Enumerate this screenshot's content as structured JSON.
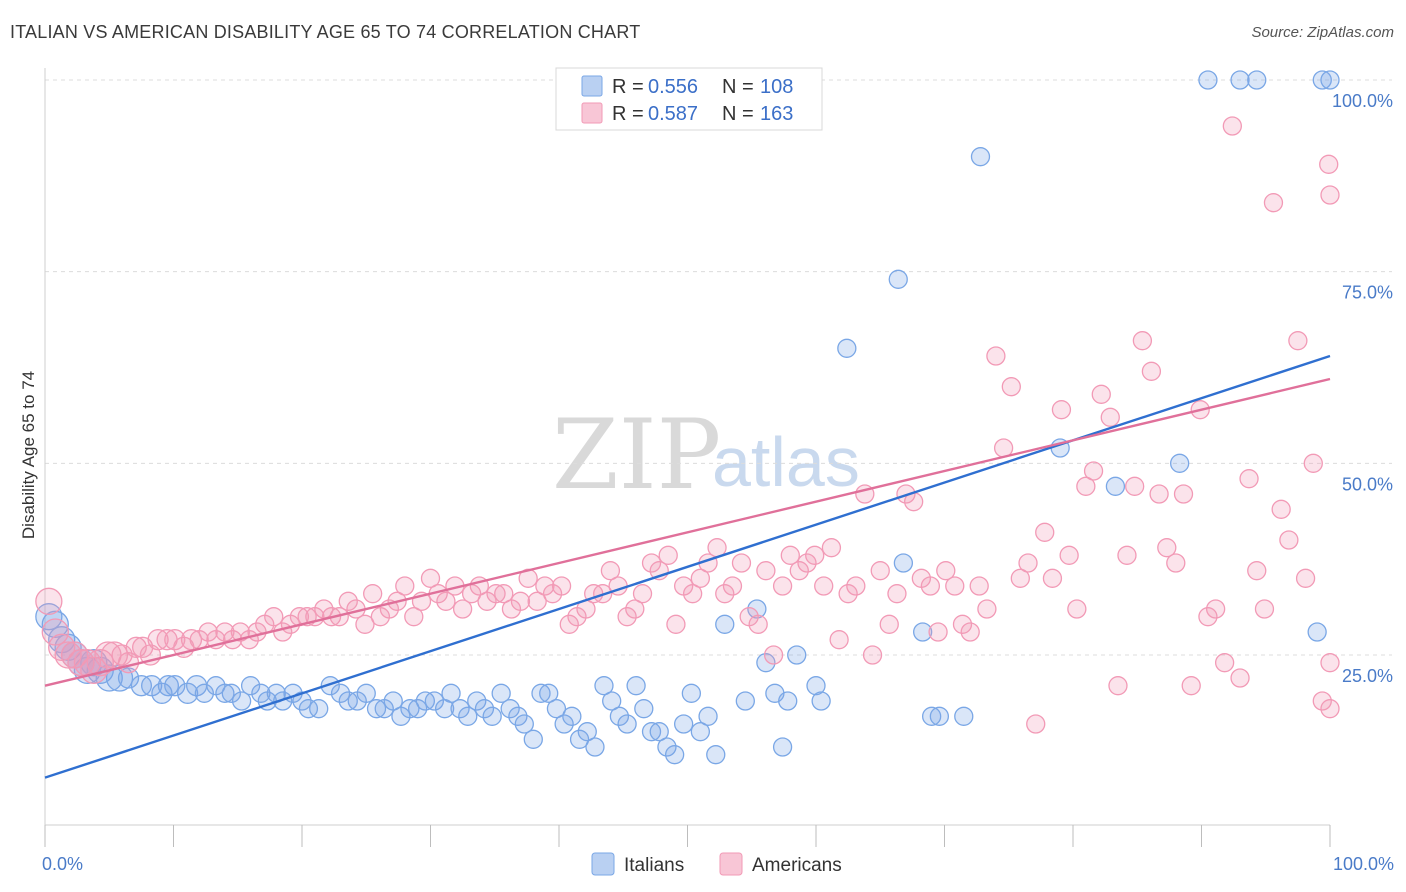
{
  "title": "ITALIAN VS AMERICAN DISABILITY AGE 65 TO 74 CORRELATION CHART",
  "source": "Source: ZipAtlas.com",
  "watermark": {
    "zip": "ZIP",
    "atlas": "atlas"
  },
  "chart_data": {
    "type": "scatter",
    "ylabel": "Disability Age 65 to 74",
    "xlim": [
      0,
      100
    ],
    "ylim": [
      0,
      105
    ],
    "x_ticks": [
      "0.0%",
      "100.0%"
    ],
    "y_ticks": [
      {
        "value": 25,
        "label": "25.0%"
      },
      {
        "value": 50,
        "label": "50.0%"
      },
      {
        "value": 75,
        "label": "75.0%"
      },
      {
        "value": 100,
        "label": "100.0%"
      }
    ],
    "legend": {
      "placement": "top-center",
      "rows": [
        {
          "r_label": "R = ",
          "r_value": "0.556",
          "n_label": "N = ",
          "n_value": "108"
        },
        {
          "r_label": "R = ",
          "r_value": "0.587",
          "n_label": "N = ",
          "n_value": "163"
        }
      ]
    },
    "series": [
      {
        "name": "Italians",
        "color": "#7aa7e6",
        "line_color": "#2f6fd0",
        "trend": [
          [
            0,
            9
          ],
          [
            100,
            64
          ]
        ],
        "points": [
          [
            0.3,
            30
          ],
          [
            0.8,
            29
          ],
          [
            1.3,
            27
          ],
          [
            1.8,
            26
          ],
          [
            2.3,
            25
          ],
          [
            2.8,
            24
          ],
          [
            3.3,
            23
          ],
          [
            3.8,
            24
          ],
          [
            4.3,
            23
          ],
          [
            5.0,
            22
          ],
          [
            5.8,
            22
          ],
          [
            6.5,
            22
          ],
          [
            7.5,
            21
          ],
          [
            8.3,
            21
          ],
          [
            9.1,
            20
          ],
          [
            9.6,
            21
          ],
          [
            10.1,
            21
          ],
          [
            11.1,
            20
          ],
          [
            11.8,
            21
          ],
          [
            12.4,
            20
          ],
          [
            13.3,
            21
          ],
          [
            14.0,
            20
          ],
          [
            14.5,
            20
          ],
          [
            15.3,
            19
          ],
          [
            16.0,
            21
          ],
          [
            16.8,
            20
          ],
          [
            17.3,
            19
          ],
          [
            18.0,
            20
          ],
          [
            18.5,
            19
          ],
          [
            19.3,
            20
          ],
          [
            20.0,
            19
          ],
          [
            20.5,
            18
          ],
          [
            21.3,
            18
          ],
          [
            22.2,
            21
          ],
          [
            23.0,
            20
          ],
          [
            23.6,
            19
          ],
          [
            24.3,
            19
          ],
          [
            25.0,
            20
          ],
          [
            25.8,
            18
          ],
          [
            26.4,
            18
          ],
          [
            27.1,
            19
          ],
          [
            27.7,
            17
          ],
          [
            28.4,
            18
          ],
          [
            29.0,
            18
          ],
          [
            29.6,
            19
          ],
          [
            30.3,
            19
          ],
          [
            31.1,
            18
          ],
          [
            31.6,
            20
          ],
          [
            32.3,
            18
          ],
          [
            32.9,
            17
          ],
          [
            33.6,
            19
          ],
          [
            34.2,
            18
          ],
          [
            34.8,
            17
          ],
          [
            35.5,
            20
          ],
          [
            36.2,
            18
          ],
          [
            36.8,
            17
          ],
          [
            37.3,
            16
          ],
          [
            38.0,
            14
          ],
          [
            38.6,
            20
          ],
          [
            39.2,
            20
          ],
          [
            39.8,
            18
          ],
          [
            40.4,
            16
          ],
          [
            41.0,
            17
          ],
          [
            41.6,
            14
          ],
          [
            42.2,
            15
          ],
          [
            42.8,
            13
          ],
          [
            43.5,
            21
          ],
          [
            44.1,
            19
          ],
          [
            44.7,
            17
          ],
          [
            45.3,
            16
          ],
          [
            46.0,
            21
          ],
          [
            46.6,
            18
          ],
          [
            47.2,
            15
          ],
          [
            47.8,
            15
          ],
          [
            48.4,
            13
          ],
          [
            49.0,
            12
          ],
          [
            49.7,
            16
          ],
          [
            50.3,
            20
          ],
          [
            51.0,
            15
          ],
          [
            51.6,
            17
          ],
          [
            52.2,
            12
          ],
          [
            52.9,
            29
          ],
          [
            54.5,
            19
          ],
          [
            55.4,
            31
          ],
          [
            56.1,
            24
          ],
          [
            56.8,
            20
          ],
          [
            57.4,
            13
          ],
          [
            57.8,
            19
          ],
          [
            58.5,
            25
          ],
          [
            60.0,
            21
          ],
          [
            60.4,
            19
          ],
          [
            62.4,
            65
          ],
          [
            66.4,
            74
          ],
          [
            66.8,
            37
          ],
          [
            68.3,
            28
          ],
          [
            69.0,
            17
          ],
          [
            69.6,
            17
          ],
          [
            71.5,
            17
          ],
          [
            72.8,
            90
          ],
          [
            79.0,
            52
          ],
          [
            83.3,
            47
          ],
          [
            88.3,
            50
          ],
          [
            90.5,
            100
          ],
          [
            93.0,
            100
          ],
          [
            94.3,
            100
          ],
          [
            99.0,
            28
          ],
          [
            99.4,
            100
          ],
          [
            100.0,
            100
          ]
        ]
      },
      {
        "name": "Americans",
        "color": "#f29ab6",
        "line_color": "#e0709a",
        "trend": [
          [
            0,
            21
          ],
          [
            100,
            61
          ]
        ],
        "points": [
          [
            0.3,
            32
          ],
          [
            0.8,
            28
          ],
          [
            1.3,
            26
          ],
          [
            1.8,
            25
          ],
          [
            2.3,
            25
          ],
          [
            2.8,
            24
          ],
          [
            3.3,
            24
          ],
          [
            3.8,
            23
          ],
          [
            4.3,
            24
          ],
          [
            4.9,
            25
          ],
          [
            5.4,
            25
          ],
          [
            6.0,
            25
          ],
          [
            6.5,
            24
          ],
          [
            7.1,
            26
          ],
          [
            7.6,
            26
          ],
          [
            8.2,
            25
          ],
          [
            8.8,
            27
          ],
          [
            9.5,
            27
          ],
          [
            10.1,
            27
          ],
          [
            10.8,
            26
          ],
          [
            11.4,
            27
          ],
          [
            12.0,
            27
          ],
          [
            12.7,
            28
          ],
          [
            13.3,
            27
          ],
          [
            14.0,
            28
          ],
          [
            14.6,
            27
          ],
          [
            15.2,
            28
          ],
          [
            15.9,
            27
          ],
          [
            16.5,
            28
          ],
          [
            17.1,
            29
          ],
          [
            17.8,
            30
          ],
          [
            18.5,
            28
          ],
          [
            19.1,
            29
          ],
          [
            19.8,
            30
          ],
          [
            20.4,
            30
          ],
          [
            21.0,
            30
          ],
          [
            21.7,
            31
          ],
          [
            22.3,
            30
          ],
          [
            22.9,
            30
          ],
          [
            23.6,
            32
          ],
          [
            24.2,
            31
          ],
          [
            24.9,
            29
          ],
          [
            25.5,
            33
          ],
          [
            26.1,
            30
          ],
          [
            26.8,
            31
          ],
          [
            27.4,
            32
          ],
          [
            28.0,
            34
          ],
          [
            28.7,
            30
          ],
          [
            29.3,
            32
          ],
          [
            30.0,
            35
          ],
          [
            30.6,
            33
          ],
          [
            31.2,
            32
          ],
          [
            31.9,
            34
          ],
          [
            32.5,
            31
          ],
          [
            33.2,
            33
          ],
          [
            33.8,
            34
          ],
          [
            34.4,
            32
          ],
          [
            35.1,
            33
          ],
          [
            35.7,
            33
          ],
          [
            36.3,
            31
          ],
          [
            37.0,
            32
          ],
          [
            37.6,
            35
          ],
          [
            38.3,
            32
          ],
          [
            38.9,
            34
          ],
          [
            39.5,
            33
          ],
          [
            40.2,
            34
          ],
          [
            40.8,
            29
          ],
          [
            41.4,
            30
          ],
          [
            42.1,
            31
          ],
          [
            42.7,
            33
          ],
          [
            43.4,
            33
          ],
          [
            44.0,
            36
          ],
          [
            44.6,
            34
          ],
          [
            45.3,
            30
          ],
          [
            45.9,
            31
          ],
          [
            46.5,
            33
          ],
          [
            47.2,
            37
          ],
          [
            47.8,
            36
          ],
          [
            48.5,
            38
          ],
          [
            49.1,
            29
          ],
          [
            49.7,
            34
          ],
          [
            50.4,
            33
          ],
          [
            51.0,
            35
          ],
          [
            51.6,
            37
          ],
          [
            52.3,
            39
          ],
          [
            52.9,
            33
          ],
          [
            53.5,
            34
          ],
          [
            54.2,
            37
          ],
          [
            54.8,
            30
          ],
          [
            55.5,
            29
          ],
          [
            56.1,
            36
          ],
          [
            56.7,
            25
          ],
          [
            57.4,
            34
          ],
          [
            58.0,
            38
          ],
          [
            58.7,
            36
          ],
          [
            59.3,
            37
          ],
          [
            59.9,
            38
          ],
          [
            60.6,
            34
          ],
          [
            61.2,
            39
          ],
          [
            61.8,
            27
          ],
          [
            62.5,
            33
          ],
          [
            63.1,
            34
          ],
          [
            63.8,
            46
          ],
          [
            64.4,
            25
          ],
          [
            65.0,
            36
          ],
          [
            65.7,
            29
          ],
          [
            66.3,
            33
          ],
          [
            67.0,
            46
          ],
          [
            67.6,
            45
          ],
          [
            68.2,
            35
          ],
          [
            68.9,
            34
          ],
          [
            69.5,
            28
          ],
          [
            70.1,
            36
          ],
          [
            70.8,
            34
          ],
          [
            71.4,
            29
          ],
          [
            72.0,
            28
          ],
          [
            72.7,
            34
          ],
          [
            73.3,
            31
          ],
          [
            74.0,
            64
          ],
          [
            74.6,
            52
          ],
          [
            75.2,
            60
          ],
          [
            75.9,
            35
          ],
          [
            76.5,
            37
          ],
          [
            77.1,
            16
          ],
          [
            77.8,
            41
          ],
          [
            78.4,
            35
          ],
          [
            79.1,
            57
          ],
          [
            79.7,
            38
          ],
          [
            80.3,
            31
          ],
          [
            81.0,
            47
          ],
          [
            81.6,
            49
          ],
          [
            82.2,
            59
          ],
          [
            82.9,
            56
          ],
          [
            83.5,
            21
          ],
          [
            84.2,
            38
          ],
          [
            84.8,
            47
          ],
          [
            85.4,
            66
          ],
          [
            86.1,
            62
          ],
          [
            86.7,
            46
          ],
          [
            87.3,
            39
          ],
          [
            88.0,
            37
          ],
          [
            88.6,
            46
          ],
          [
            89.2,
            21
          ],
          [
            89.9,
            57
          ],
          [
            90.5,
            30
          ],
          [
            91.1,
            31
          ],
          [
            91.8,
            24
          ],
          [
            92.4,
            94
          ],
          [
            93.0,
            22
          ],
          [
            93.7,
            48
          ],
          [
            94.3,
            36
          ],
          [
            94.9,
            31
          ],
          [
            95.6,
            84
          ],
          [
            96.2,
            44
          ],
          [
            96.8,
            40
          ],
          [
            97.5,
            66
          ],
          [
            98.1,
            35
          ],
          [
            98.7,
            50
          ],
          [
            99.4,
            19
          ],
          [
            99.9,
            89
          ],
          [
            100.0,
            24
          ],
          [
            100.0,
            85
          ],
          [
            100.0,
            18
          ]
        ]
      }
    ]
  }
}
